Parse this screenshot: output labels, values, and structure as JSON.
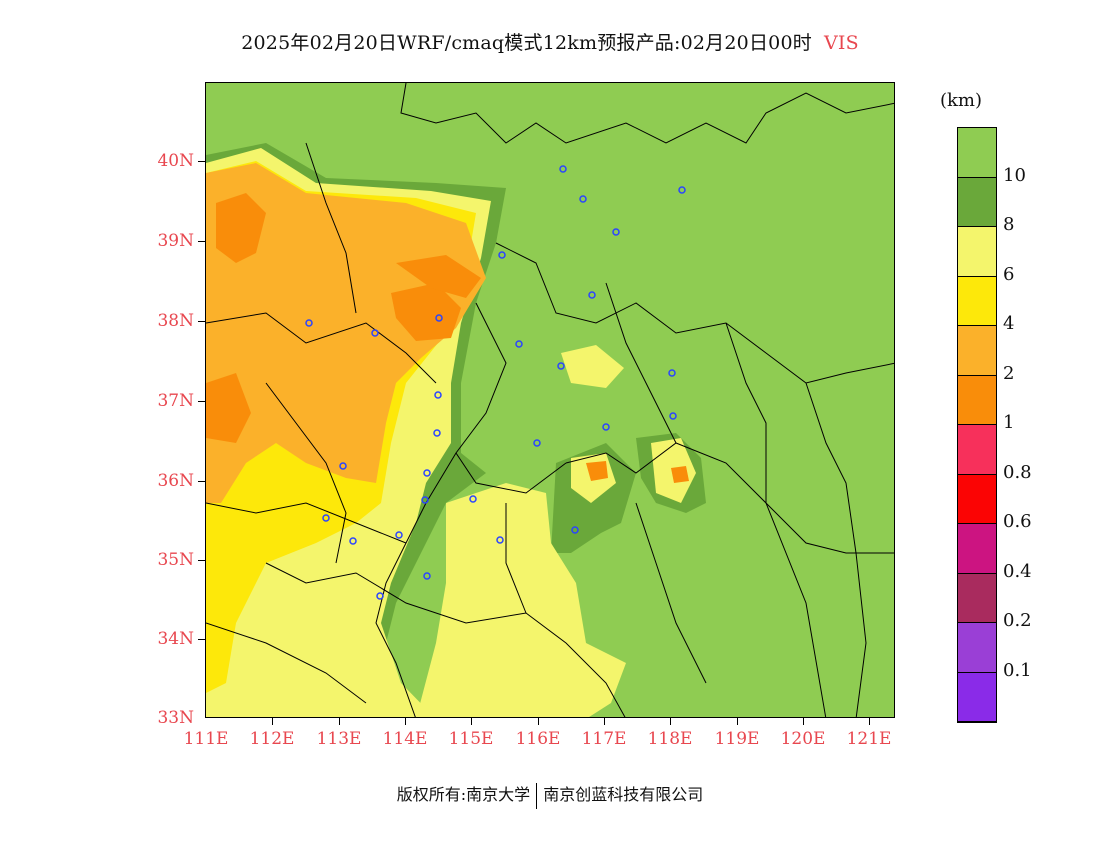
{
  "title": {
    "main": "2025年02月20日WRF/cmaq模式12km预报产品:02月20日00时",
    "variable": "VIS"
  },
  "map": {
    "y_ticks": [
      "40N",
      "39N",
      "38N",
      "37N",
      "36N",
      "35N",
      "34N",
      "33N"
    ],
    "x_ticks": [
      "111E",
      "112E",
      "113E",
      "114E",
      "115E",
      "116E",
      "117E",
      "118E",
      "119E",
      "120E",
      "121E"
    ],
    "colors": {
      "above_10": "#8fcc52",
      "8_10": "#6aa83a",
      "6_8": "#f4f56c",
      "4_6": "#fde80a",
      "2_4": "#fbb12a",
      "1_2": "#f98d0a",
      "station": "#2a44ff"
    }
  },
  "colorbar": {
    "unit": "(km)",
    "labels": [
      "10",
      "8",
      "6",
      "4",
      "2",
      "1",
      "0.8",
      "0.6",
      "0.4",
      "0.2",
      "0.1"
    ],
    "colors": [
      "#8fcc52",
      "#6aa83a",
      "#f4f56c",
      "#fde80a",
      "#fbb12a",
      "#f98d0a",
      "#f7305b",
      "#fb0404",
      "#cc1481",
      "#a92b5e",
      "#9a3fd6",
      "#8a2be8"
    ]
  },
  "footer": {
    "copyright": "版权所有:南京大学",
    "company": "南京创蓝科技有限公司"
  }
}
